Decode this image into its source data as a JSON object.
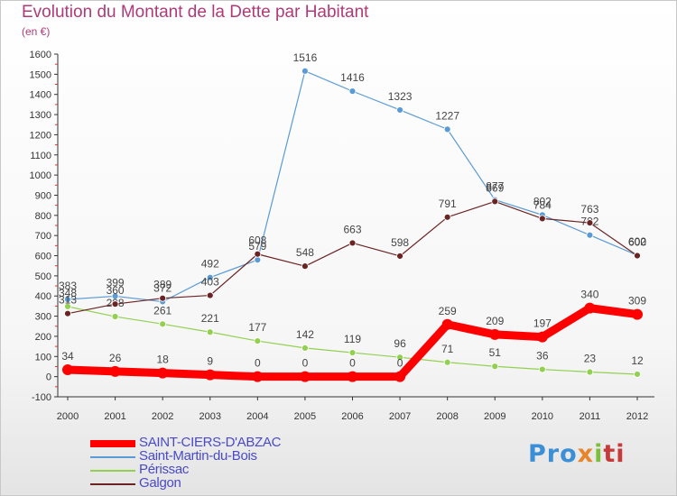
{
  "title": "Evolution du Montant de la Dette par Habitant",
  "subtitle": "(en €)",
  "logo": [
    "Pro",
    "x",
    "i",
    "ti"
  ],
  "chart_data": {
    "type": "line",
    "title": "Evolution du Montant de la Dette par Habitant",
    "ylabel": "(en €)",
    "xlabel": "",
    "x": [
      "2000",
      "2001",
      "2002",
      "2003",
      "2004",
      "2005",
      "2006",
      "2007",
      "2008",
      "2009",
      "2010",
      "2011",
      "2012"
    ],
    "ylim": [
      -100,
      1600
    ],
    "yticks": [
      -100,
      0,
      100,
      200,
      300,
      400,
      500,
      600,
      700,
      800,
      900,
      1000,
      1100,
      1200,
      1300,
      1400,
      1500,
      1600
    ],
    "grid": false,
    "series": [
      {
        "name": "Saint-Martin-du-Bois",
        "color": "#5b9bd5",
        "values": [
          383,
          399,
          372,
          492,
          579,
          1516,
          1416,
          1323,
          1227,
          877,
          802,
          702,
          602
        ]
      },
      {
        "name": "Périssac",
        "color": "#92d050",
        "values": [
          348,
          298,
          261,
          221,
          177,
          142,
          119,
          96,
          71,
          51,
          36,
          23,
          12
        ]
      },
      {
        "name": "Galgon",
        "color": "#6b2424",
        "values": [
          313,
          360,
          389,
          403,
          608,
          548,
          663,
          598,
          791,
          869,
          784,
          763,
          600
        ]
      },
      {
        "name": "SAINT-CIERS-D'ABZAC",
        "color": "#ff0000",
        "values": [
          34,
          26,
          18,
          9,
          0,
          0,
          0,
          0,
          259,
          209,
          197,
          340,
          309
        ]
      }
    ],
    "legend": [
      {
        "name": "SAINT-CIERS-D'ABZAC",
        "color": "#ff0000"
      },
      {
        "name": "Saint-Martin-du-Bois",
        "color": "#5b9bd5"
      },
      {
        "name": "Périssac",
        "color": "#92d050"
      },
      {
        "name": "Galgon",
        "color": "#6b2424"
      }
    ],
    "legend_position": "bottom-left"
  }
}
